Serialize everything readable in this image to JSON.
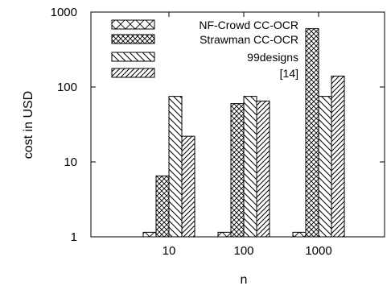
{
  "chart_data": {
    "type": "bar",
    "xlabel": "n",
    "ylabel": "cost in USD",
    "yscale": "log",
    "ylim": [
      1,
      1000
    ],
    "yticks": [
      1,
      10,
      100,
      1000
    ],
    "ytick_labels": [
      "1",
      "10",
      "100",
      "1000"
    ],
    "categories": [
      "10",
      "100",
      "1000"
    ],
    "series": [
      {
        "name": "NF-Crowd CC-OCR",
        "pattern": "crosshatch-sparse",
        "values": [
          1.15,
          1.15,
          1.15
        ]
      },
      {
        "name": "Strawman CC-OCR",
        "pattern": "crosshatch-dense",
        "values": [
          6.5,
          60,
          600
        ]
      },
      {
        "name": "99designs",
        "pattern": "backslash",
        "values": [
          75,
          75,
          75
        ]
      },
      {
        "name": "[14]",
        "pattern": "slash",
        "values": [
          22,
          65,
          140
        ]
      }
    ],
    "legend_position": "top-left",
    "grid": false
  }
}
